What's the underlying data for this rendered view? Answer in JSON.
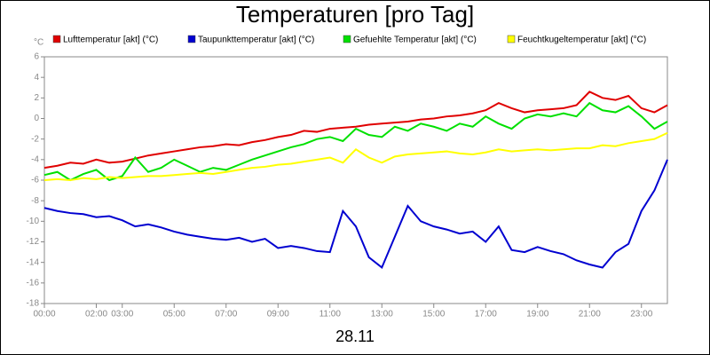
{
  "chart_data": {
    "type": "line",
    "title": "Temperaturen [pro Tag]",
    "y_label": "°C",
    "x_label": "28.11",
    "x": [
      0,
      0.5,
      1,
      1.5,
      2,
      2.5,
      3,
      3.5,
      4,
      4.5,
      5,
      5.5,
      6,
      6.5,
      7,
      7.5,
      8,
      8.5,
      9,
      9.5,
      10,
      10.5,
      11,
      11.5,
      12,
      12.5,
      13,
      13.5,
      14,
      14.5,
      15,
      15.5,
      16,
      16.5,
      17,
      17.5,
      18,
      18.5,
      19,
      19.5,
      20,
      20.5,
      21,
      21.5,
      22,
      22.5,
      23,
      23.5,
      24
    ],
    "xlim": [
      0,
      24
    ],
    "xticks": [
      {
        "value": 0,
        "label": "00:00"
      },
      {
        "value": 2,
        "label": "02:00"
      },
      {
        "value": 3,
        "label": "03:00"
      },
      {
        "value": 5,
        "label": "05:00"
      },
      {
        "value": 7,
        "label": "07:00"
      },
      {
        "value": 9,
        "label": "09:00"
      },
      {
        "value": 11,
        "label": "11:00"
      },
      {
        "value": 13,
        "label": "13:00"
      },
      {
        "value": 15,
        "label": "15:00"
      },
      {
        "value": 17,
        "label": "17:00"
      },
      {
        "value": 19,
        "label": "19:00"
      },
      {
        "value": 21,
        "label": "21:00"
      },
      {
        "value": 23,
        "label": "23:00"
      }
    ],
    "ylim": [
      -18,
      6
    ],
    "yticks": [
      -18,
      -16,
      -14,
      -12,
      -10,
      -8,
      -6,
      -4,
      -2,
      0,
      2,
      4,
      6
    ],
    "series": [
      {
        "name": "Lufttemperatur [akt] (°C)",
        "color": "#e00000",
        "values": [
          -4.8,
          -4.6,
          -4.3,
          -4.4,
          -4.0,
          -4.3,
          -4.2,
          -3.9,
          -3.6,
          -3.4,
          -3.2,
          -3.0,
          -2.8,
          -2.7,
          -2.5,
          -2.6,
          -2.3,
          -2.1,
          -1.8,
          -1.6,
          -1.2,
          -1.3,
          -1.0,
          -0.9,
          -0.8,
          -0.6,
          -0.5,
          -0.4,
          -0.3,
          -0.1,
          0.0,
          0.2,
          0.3,
          0.5,
          0.8,
          1.5,
          1.0,
          0.6,
          0.8,
          0.9,
          1.0,
          1.3,
          2.6,
          2.0,
          1.8,
          2.2,
          1.0,
          0.6,
          1.3
        ]
      },
      {
        "name": "Taupunkttemperatur [akt] (°C)",
        "color": "#0000d0",
        "values": [
          -8.7,
          -9.0,
          -9.2,
          -9.3,
          -9.6,
          -9.5,
          -9.9,
          -10.5,
          -10.3,
          -10.6,
          -11.0,
          -11.3,
          -11.5,
          -11.7,
          -11.8,
          -11.6,
          -12.0,
          -11.7,
          -12.6,
          -12.4,
          -12.6,
          -12.9,
          -13.0,
          -9.0,
          -10.5,
          -13.5,
          -14.5,
          -11.5,
          -8.5,
          -10.0,
          -10.5,
          -10.8,
          -11.2,
          -11.0,
          -12.0,
          -10.5,
          -12.8,
          -13.0,
          -12.5,
          -12.9,
          -13.2,
          -13.8,
          -14.2,
          -14.5,
          -13.0,
          -12.2,
          -9.0,
          -7.0,
          -4.0
        ]
      },
      {
        "name": "Gefuehlte Temperatur [akt] (°C)",
        "color": "#00e000",
        "values": [
          -5.5,
          -5.2,
          -6.0,
          -5.4,
          -5.0,
          -6.0,
          -5.6,
          -3.8,
          -5.2,
          -4.8,
          -4.0,
          -4.6,
          -5.2,
          -4.8,
          -5.0,
          -4.5,
          -4.0,
          -3.6,
          -3.2,
          -2.8,
          -2.5,
          -2.0,
          -1.8,
          -2.2,
          -1.0,
          -1.6,
          -1.8,
          -0.8,
          -1.2,
          -0.5,
          -0.8,
          -1.2,
          -0.5,
          -0.8,
          0.2,
          -0.5,
          -1.0,
          0.0,
          0.4,
          0.2,
          0.5,
          0.2,
          1.5,
          0.8,
          0.6,
          1.2,
          0.2,
          -1.0,
          -0.3
        ]
      },
      {
        "name": "Feuchtkugeltemperatur [akt] (°C)",
        "color": "#ffff00",
        "values": [
          -6.0,
          -5.9,
          -6.0,
          -5.8,
          -5.9,
          -5.7,
          -5.8,
          -5.7,
          -5.6,
          -5.6,
          -5.5,
          -5.4,
          -5.3,
          -5.4,
          -5.2,
          -5.0,
          -4.8,
          -4.7,
          -4.5,
          -4.4,
          -4.2,
          -4.0,
          -3.8,
          -4.3,
          -3.0,
          -3.8,
          -4.3,
          -3.7,
          -3.5,
          -3.4,
          -3.3,
          -3.2,
          -3.4,
          -3.5,
          -3.3,
          -3.0,
          -3.2,
          -3.1,
          -3.0,
          -3.1,
          -3.0,
          -2.9,
          -2.9,
          -2.6,
          -2.7,
          -2.4,
          -2.2,
          -2.0,
          -1.4
        ]
      }
    ]
  }
}
